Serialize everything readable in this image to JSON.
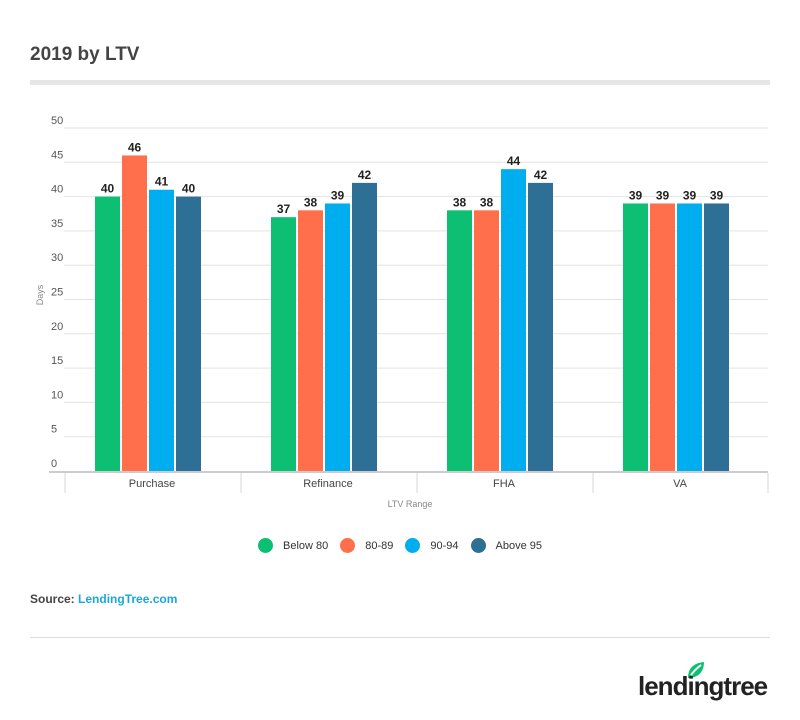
{
  "title": "2019 by LTV",
  "source_label": "Source:",
  "source_link": "LendingTree.com",
  "logo_text": "lendingtree",
  "chart_data": {
    "type": "bar",
    "title": "2019 by LTV",
    "xlabel": "LTV Range",
    "ylabel": "Days",
    "ylim": [
      0,
      50
    ],
    "yticks": [
      0,
      5,
      10,
      15,
      20,
      25,
      30,
      35,
      40,
      45,
      50
    ],
    "grid": true,
    "legend_position": "bottom",
    "categories": [
      "Purchase",
      "Refinance",
      "FHA",
      "VA"
    ],
    "series": [
      {
        "name": "Below 80",
        "color": "#0dbf73",
        "values": [
          40,
          37,
          38,
          39
        ]
      },
      {
        "name": "80-89",
        "color": "#ff6f4c",
        "values": [
          46,
          38,
          38,
          39
        ]
      },
      {
        "name": "90-94",
        "color": "#00adee",
        "values": [
          41,
          39,
          44,
          39
        ]
      },
      {
        "name": "Above 95",
        "color": "#2e6f95",
        "values": [
          40,
          42,
          42,
          39
        ]
      }
    ]
  }
}
